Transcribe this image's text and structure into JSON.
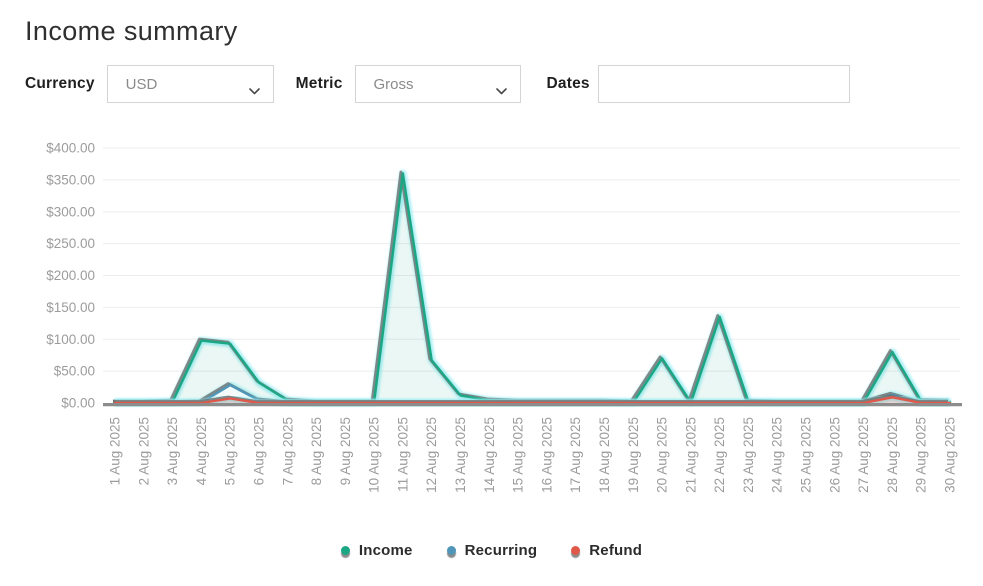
{
  "page": {
    "title": "Income summary"
  },
  "controls": {
    "currency_label": "Currency",
    "currency_value": "USD",
    "metric_label": "Metric",
    "metric_value": "Gross",
    "dates_label": "Dates",
    "dates_value": ""
  },
  "chart_data": {
    "type": "area",
    "title": "Income summary",
    "xlabel": "",
    "ylabel": "",
    "ylim": [
      0,
      400
    ],
    "grid": true,
    "legend_position": "bottom",
    "grid_color": "#ededed",
    "axis_line_color": "#8c8c8c",
    "tick_label_color": "#9c9c9c",
    "line_shadow_color": "#6d6d6d",
    "glow_color": "#97edf3",
    "yticks": [
      {
        "v": 0,
        "label": "$0.00"
      },
      {
        "v": 50,
        "label": "$50.00"
      },
      {
        "v": 100,
        "label": "$100.00"
      },
      {
        "v": 150,
        "label": "$150.00"
      },
      {
        "v": 200,
        "label": "$200.00"
      },
      {
        "v": 250,
        "label": "$250.00"
      },
      {
        "v": 300,
        "label": "$300.00"
      },
      {
        "v": 350,
        "label": "$350.00"
      },
      {
        "v": 400,
        "label": "$400.00"
      }
    ],
    "x": [
      "1 Aug 2025",
      "2 Aug 2025",
      "3 Aug 2025",
      "4 Aug 2025",
      "5 Aug 2025",
      "6 Aug 2025",
      "7 Aug 2025",
      "8 Aug 2025",
      "9 Aug 2025",
      "10 Aug 2025",
      "11 Aug 2025",
      "12 Aug 2025",
      "13 Aug 2025",
      "14 Aug 2025",
      "15 Aug 2025",
      "16 Aug 2025",
      "17 Aug 2025",
      "18 Aug 2025",
      "19 Aug 2025",
      "20 Aug 2025",
      "21 Aug 2025",
      "22 Aug 2025",
      "23 Aug 2025",
      "24 Aug 2025",
      "25 Aug 2025",
      "26 Aug 2025",
      "27 Aug 2025",
      "28 Aug 2025",
      "29 Aug 2025",
      "30 Aug 2025"
    ],
    "series": [
      {
        "name": "Income",
        "color": "#1ba784",
        "fill": "rgba(27,167,132,0.09)",
        "values": [
          1,
          1,
          2,
          98,
          93,
          32,
          4,
          1,
          1,
          1,
          360,
          67,
          12,
          4,
          2,
          2,
          2,
          2,
          1,
          70,
          1,
          135,
          2,
          1,
          1,
          1,
          1,
          80,
          3,
          2
        ]
      },
      {
        "name": "Recurring",
        "color": "#4f96b8",
        "fill": "rgba(248,252,253,0.88)",
        "values": [
          0,
          0,
          0,
          1,
          28,
          4,
          0,
          0,
          0,
          0,
          0,
          0,
          0,
          0,
          0,
          0,
          0,
          0,
          0,
          0,
          0,
          0,
          0,
          0,
          0,
          0,
          0,
          13,
          0,
          0
        ]
      },
      {
        "name": "Refund",
        "color": "#e0584a",
        "fill": "rgba(224,88,74,0.22)",
        "values": [
          0,
          0,
          0,
          0,
          7,
          0,
          0,
          0,
          0,
          0,
          0,
          0,
          0,
          0,
          0,
          0,
          0,
          0,
          0,
          0,
          0,
          0,
          0,
          0,
          0,
          0,
          0,
          9,
          0,
          0
        ]
      }
    ]
  }
}
